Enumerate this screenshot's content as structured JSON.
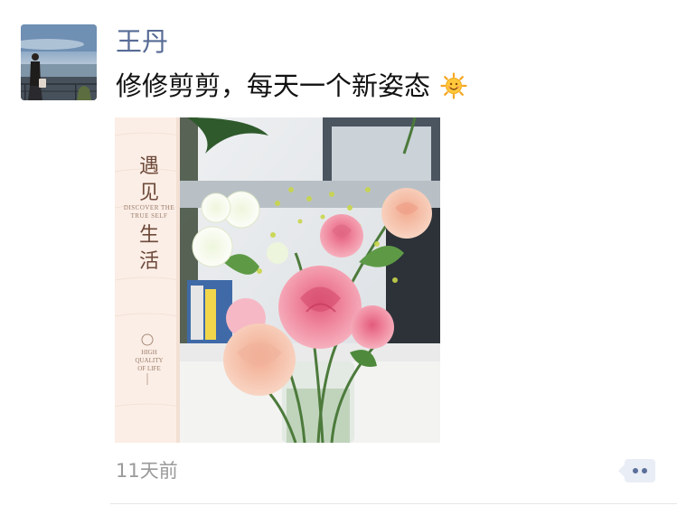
{
  "post": {
    "author_name": "王丹",
    "text": "修修剪剪，每天一个新姿态",
    "emoji_icon": "sun-smile-emoji",
    "timestamp": "11天前"
  },
  "photo_card": {
    "title_chars": [
      "遇",
      "见",
      "生",
      "活"
    ],
    "subtitle_line1": "DISCOVER THE",
    "subtitle_line2": "TRUE SELF",
    "tagline_line1": "HIGH",
    "tagline_line2": "QUALITY",
    "tagline_line3": "OF LIFE"
  },
  "actions": {
    "comment_icon": "more-actions-icon"
  },
  "colors": {
    "name_link": "#576b95",
    "text": "#111111",
    "timestamp": "#9a9a9a",
    "action_bg": "#e9edf5",
    "action_dots": "#5a6f9b"
  }
}
